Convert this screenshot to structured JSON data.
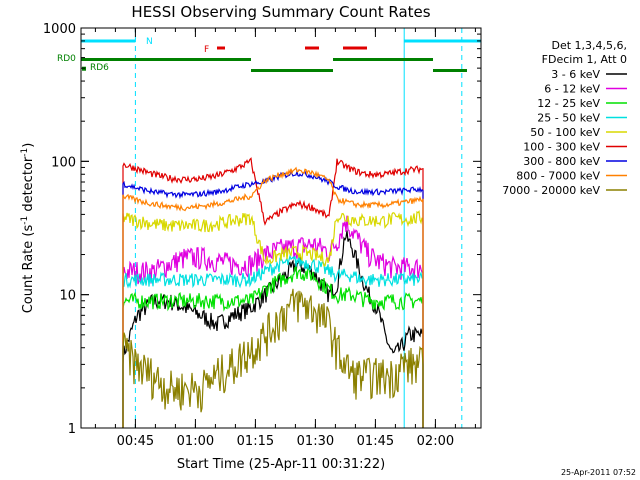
{
  "chart_data": {
    "type": "line",
    "title": "HESSI Observing Summary Count Rates",
    "xlabel": "Start Time (25-Apr-11 00:31:22)",
    "ylabel": "Count Rate (s",
    "ylabel_sup1": "-1",
    "ylabel_mid": " detector",
    "ylabel_sup2": "-1",
    "ylabel_end": ")",
    "y_scale": "log",
    "ylim": [
      1,
      1000
    ],
    "xlim_minutes": [
      0,
      100
    ],
    "x_ticks": [
      {
        "label": "00:45",
        "value": 13.6
      },
      {
        "label": "01:00",
        "value": 28.6
      },
      {
        "label": "01:15",
        "value": 43.6
      },
      {
        "label": "01:30",
        "value": 58.6
      },
      {
        "label": "01:45",
        "value": 73.6
      },
      {
        "label": "02:00",
        "value": 88.6
      }
    ],
    "y_ticks": [
      {
        "label": "1",
        "value": 1
      },
      {
        "label": "10",
        "value": 10
      },
      {
        "label": "100",
        "value": 100
      },
      {
        "label": "1000",
        "value": 1000
      }
    ],
    "legend": {
      "placement": "right",
      "header": [
        "Det 1,3,4,5,6,",
        "FDecim 1, Att 0"
      ],
      "entries": [
        {
          "label": "3 - 6 keV",
          "color": "#000000"
        },
        {
          "label": "6 - 12 keV",
          "color": "#e000e0"
        },
        {
          "label": "12 - 25 keV",
          "color": "#00e000"
        },
        {
          "label": "25 - 50 keV",
          "color": "#00e0e0"
        },
        {
          "label": "50 - 100 keV",
          "color": "#d8d800"
        },
        {
          "label": "100 - 300 keV",
          "color": "#e00000"
        },
        {
          "label": "300 - 800 keV",
          "color": "#0000e0"
        },
        {
          "label": "800 - 7000 keV",
          "color": "#ff8000"
        },
        {
          "label": "7000 - 20000 keV",
          "color": "#8b8000"
        }
      ]
    },
    "flags": {
      "n_label": "N",
      "f_label": "F",
      "rd0_label": "RD0",
      "rd6_label": "RD6",
      "night_color": "#00e0ff",
      "flare_color": "#e00000",
      "rd_color": "#008000",
      "night_segments": [
        [
          0,
          13.6
        ],
        [
          80.8,
          100
        ]
      ],
      "night_dashed_lines": [
        13.6,
        95.2
      ],
      "night_solid_lines": [
        0,
        80.8
      ],
      "flare_segments": [
        [
          34.0,
          36.0
        ],
        [
          56.0,
          59.5
        ],
        [
          65.5,
          71.5
        ]
      ],
      "rd0_segments": [
        [
          0,
          42.5
        ],
        [
          42.5,
          63.0
        ],
        [
          63.0,
          88.0
        ],
        [
          88.0,
          96.5
        ]
      ],
      "rd0_levels": [
        580,
        480,
        580,
        480
      ]
    },
    "interval": {
      "start": 10.5,
      "end": 85.5
    },
    "series": [
      {
        "name": "3 - 6 keV",
        "color": "#000000",
        "x": [
          10.5,
          14,
          18,
          22,
          26,
          30,
          34,
          38,
          42.5,
          46,
          50,
          54,
          58,
          62,
          64,
          66,
          68,
          70,
          72,
          74,
          76,
          78,
          80,
          82,
          85.5
        ],
        "y": [
          3.5,
          7,
          9,
          9,
          8,
          7,
          6,
          7,
          8,
          10,
          13,
          17,
          15,
          10,
          12,
          28,
          22,
          14,
          10,
          8,
          5,
          3.5,
          4,
          5,
          5
        ]
      },
      {
        "name": "6 - 12 keV",
        "color": "#e000e0",
        "x": [
          10.5,
          14,
          18,
          22,
          26,
          30,
          34,
          38,
          42.5,
          46,
          50,
          54,
          58,
          62,
          64,
          66,
          68,
          70,
          72,
          74,
          76,
          78,
          80,
          82,
          85.5
        ],
        "y": [
          15,
          15,
          15,
          17,
          19,
          19,
          18,
          17,
          17,
          20,
          22,
          23,
          24,
          21,
          25,
          36,
          30,
          24,
          20,
          18,
          17,
          16,
          16,
          16,
          16
        ]
      },
      {
        "name": "12 - 25 keV",
        "color": "#00e000",
        "x": [
          10.5,
          14,
          18,
          22,
          26,
          30,
          34,
          38,
          42.5,
          46,
          50,
          54,
          58,
          62,
          64,
          66,
          68,
          70,
          72,
          74,
          76,
          78,
          80,
          82,
          85.5
        ],
        "y": [
          9,
          9,
          9,
          9,
          9,
          9,
          9,
          9,
          9,
          11,
          13,
          15,
          14,
          11,
          10,
          10,
          10,
          9.5,
          9,
          9,
          9,
          9,
          9,
          9,
          9
        ]
      },
      {
        "name": "25 - 50 keV",
        "color": "#00e0e0",
        "x": [
          10.5,
          14,
          18,
          22,
          26,
          30,
          34,
          38,
          42.5,
          46,
          50,
          54,
          58,
          62,
          64,
          66,
          68,
          70,
          72,
          74,
          76,
          78,
          80,
          82,
          85.5
        ],
        "y": [
          13,
          13,
          13,
          13,
          13,
          13,
          13,
          13,
          13,
          15,
          17,
          18,
          17,
          15,
          14,
          14,
          14,
          13,
          13,
          13,
          13,
          13,
          13,
          13,
          13
        ]
      },
      {
        "name": "50 - 100 keV",
        "color": "#d8d800",
        "x": [
          10.5,
          14,
          18,
          22,
          26,
          30,
          34,
          38,
          42.5,
          46,
          50,
          54,
          58,
          62,
          64,
          66,
          68,
          70,
          72,
          74,
          76,
          78,
          80,
          82,
          85.5
        ],
        "y": [
          38,
          36,
          34,
          33,
          33,
          33,
          34,
          36,
          38,
          18,
          20,
          21,
          20,
          18,
          40,
          38,
          37,
          36,
          36,
          36,
          36,
          37,
          37,
          37,
          38
        ]
      },
      {
        "name": "100 - 300 keV",
        "color": "#e00000",
        "x": [
          10.5,
          14,
          18,
          22,
          26,
          30,
          34,
          38,
          42.5,
          46,
          50,
          54,
          58,
          62,
          64,
          66,
          68,
          70,
          72,
          74,
          76,
          78,
          80,
          82,
          85.5
        ],
        "y": [
          95,
          88,
          80,
          75,
          73,
          74,
          78,
          86,
          100,
          35,
          42,
          48,
          45,
          38,
          100,
          92,
          86,
          82,
          80,
          80,
          80,
          82,
          84,
          86,
          88
        ]
      },
      {
        "name": "300 - 800 keV",
        "color": "#0000e0",
        "x": [
          10.5,
          14,
          18,
          22,
          26,
          30,
          34,
          38,
          42.5,
          46,
          50,
          54,
          58,
          62,
          64,
          66,
          68,
          70,
          72,
          74,
          76,
          78,
          80,
          82,
          85.5
        ],
        "y": [
          68,
          63,
          59,
          57,
          56,
          57,
          59,
          63,
          68,
          70,
          78,
          82,
          78,
          70,
          65,
          62,
          60,
          59,
          59,
          59,
          59,
          60,
          60,
          61,
          62
        ]
      },
      {
        "name": "800 - 7000 keV",
        "color": "#ff8000",
        "x": [
          10.5,
          14,
          18,
          22,
          26,
          30,
          34,
          38,
          42.5,
          46,
          50,
          54,
          58,
          62,
          64,
          66,
          68,
          70,
          72,
          74,
          76,
          78,
          80,
          82,
          85.5
        ],
        "y": [
          55,
          51,
          48,
          46,
          45,
          46,
          48,
          51,
          55,
          72,
          80,
          86,
          82,
          72,
          52,
          50,
          48,
          47,
          47,
          47,
          47,
          48,
          49,
          50,
          52
        ]
      },
      {
        "name": "7000 - 20000 keV",
        "color": "#8b8000",
        "x": [
          10.5,
          14,
          18,
          22,
          26,
          30,
          34,
          38,
          42.5,
          46,
          50,
          54,
          58,
          62,
          64,
          66,
          68,
          70,
          72,
          74,
          76,
          78,
          80,
          82,
          85.5
        ],
        "y": [
          4,
          3,
          2.5,
          2,
          2,
          2,
          2.5,
          3,
          4,
          5,
          7,
          9,
          8,
          6,
          4,
          3,
          2.5,
          2.5,
          2.5,
          2.5,
          2.5,
          2.5,
          3,
          3,
          3
        ]
      }
    ]
  },
  "footer": {
    "timestamp": "25-Apr-2011 07:52"
  }
}
